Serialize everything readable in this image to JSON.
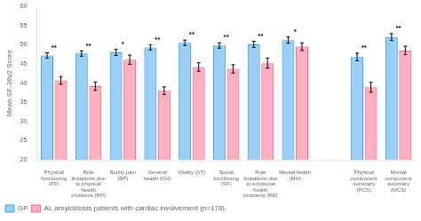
{
  "chart_data": {
    "type": "bar",
    "categories": [
      "Physical\nfunctioning\n(PF)",
      "Role\nlimitations due\nto physical\nhealth\nproblems (RP)",
      "Bodily pain\n(BP)",
      "General\nhealth (GH)",
      "Vitality (VT)",
      "Social\nfunctioning\n(SF)",
      "Role\nlimitations due\nto emotional\nhealth\nproblems (RE)",
      "Mental health\n(MH)",
      null,
      "Physical\ncomponent\nsummary\n(PCS)",
      "Mental\ncomponent\nsummary\n(MCS)"
    ],
    "series": [
      {
        "name": "GP",
        "values": [
          47.2,
          47.7,
          48.0,
          49.3,
          50.5,
          49.8,
          50.1,
          51.2,
          null,
          46.8,
          52.0
        ],
        "errors": [
          0.7,
          0.7,
          0.8,
          0.7,
          0.7,
          0.7,
          0.8,
          0.8,
          null,
          1.0,
          0.9
        ]
      },
      {
        "name": "AL amyloidosis patients with cardiac involvement (n=178)",
        "values": [
          40.7,
          39.2,
          46.1,
          38.0,
          44.2,
          43.7,
          45.2,
          49.5,
          null,
          38.9,
          48.5
        ],
        "errors": [
          1.0,
          1.1,
          1.2,
          1.0,
          1.1,
          1.1,
          1.3,
          1.0,
          null,
          1.3,
          1.1
        ]
      }
    ],
    "significance": [
      "**",
      "**",
      "*",
      "**",
      "**",
      "**",
      "**",
      "*",
      null,
      "**",
      "**"
    ],
    "y_label": "Mean SF-36v2 Score",
    "ylim": [
      20,
      60
    ],
    "yticks": [
      20,
      25,
      30,
      35,
      40,
      45,
      50,
      55,
      60
    ],
    "grid": false,
    "legend": "bottom"
  }
}
